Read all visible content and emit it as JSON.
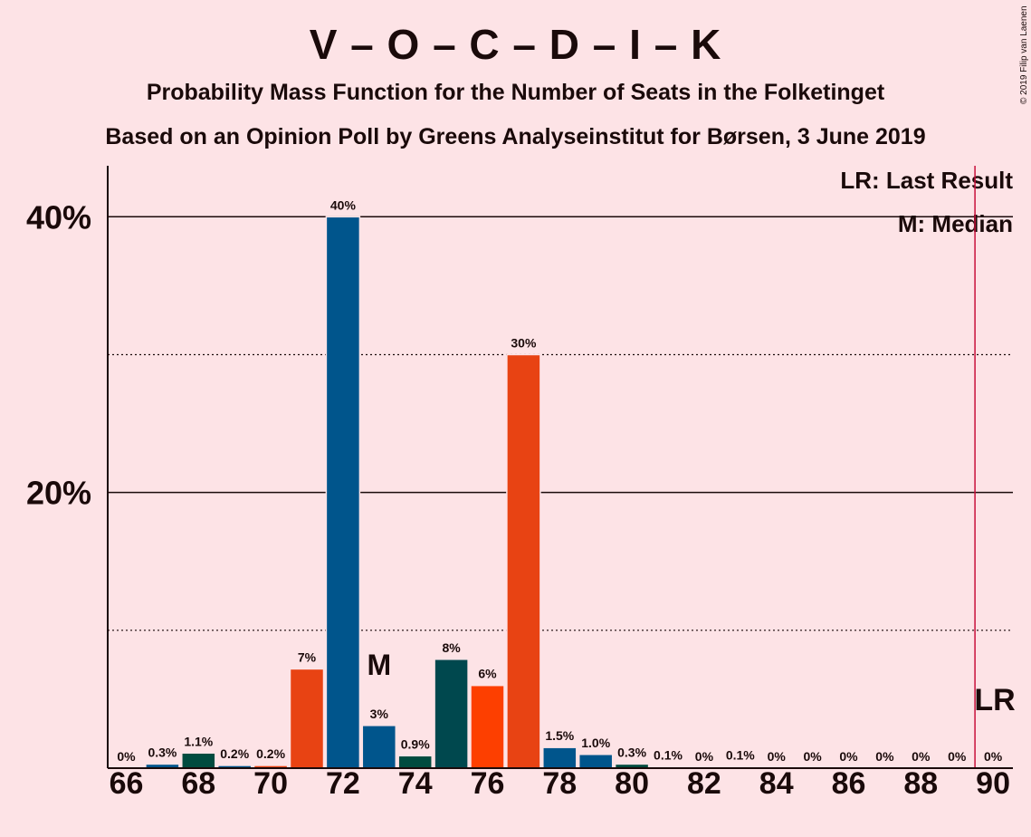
{
  "title": "V – O – C – D – I – K",
  "subtitle1": "Probability Mass Function for the Number of Seats in the Folketinget",
  "subtitle2": "Based on an Opinion Poll by Greens Analyseinstitut for Børsen, 3 June 2019",
  "copyright": "© 2019 Filip van Laenen",
  "legend": {
    "lr": "LR: Last Result",
    "median": "M: Median"
  },
  "colors": {
    "background": "#fde3e6",
    "blue": "#00558c",
    "dark_green": "#004b3f",
    "teal": "#00484e",
    "red_orange": "#e84313",
    "orange": "#fd3f00",
    "lr_line": "#c8103b"
  },
  "chart_data": {
    "type": "bar",
    "xlabel": "",
    "ylabel": "",
    "ylim": [
      0,
      43.7
    ],
    "y_ticks": [
      {
        "value": 20,
        "label": "20%"
      },
      {
        "value": 40,
        "label": "40%"
      }
    ],
    "y_dotted_lines": [
      10,
      30
    ],
    "x_tick_labels": [
      "66",
      "68",
      "70",
      "72",
      "74",
      "76",
      "78",
      "80",
      "82",
      "84",
      "86",
      "88",
      "90"
    ],
    "categories": [
      66,
      67,
      68,
      69,
      70,
      71,
      72,
      73,
      74,
      75,
      76,
      77,
      78,
      79,
      80,
      81,
      82,
      83,
      84,
      85,
      86,
      87,
      88,
      89,
      90
    ],
    "values": [
      0,
      0.3,
      1.1,
      0.2,
      0.2,
      7.2,
      40,
      3.1,
      0.9,
      7.9,
      6.0,
      30,
      1.5,
      1.0,
      0.3,
      0.1,
      0,
      0.1,
      0,
      0,
      0,
      0,
      0,
      0,
      0
    ],
    "labels": [
      "0%",
      "0.3%",
      "1.1%",
      "0.2%",
      "0.2%",
      "7%",
      "40%",
      "3%",
      "0.9%",
      "8%",
      "6%",
      "30%",
      "1.5%",
      "1.0%",
      "0.3%",
      "0.1%",
      "0%",
      "0.1%",
      "0%",
      "0%",
      "0%",
      "0%",
      "0%",
      "0%",
      "0%"
    ],
    "bar_colors": [
      "#00558c",
      "#00558c",
      "#004b3f",
      "#00558c",
      "#e84313",
      "#e84313",
      "#00558c",
      "#00558c",
      "#004b3f",
      "#00484e",
      "#fd3f00",
      "#e84313",
      "#00558c",
      "#00558c",
      "#004b3f",
      "#00558c",
      "#00558c",
      "#00558c",
      "#00558c",
      "#00558c",
      "#00558c",
      "#00558c",
      "#00558c",
      "#00558c",
      "#00558c"
    ],
    "median_seat": 73,
    "median_marker": "M",
    "last_result_seat": 90,
    "last_result_marker": "LR"
  }
}
